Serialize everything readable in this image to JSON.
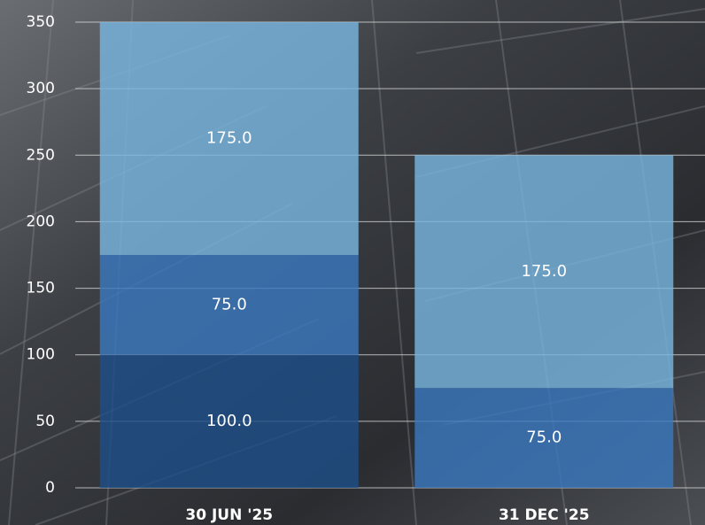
{
  "chart_data": {
    "type": "stacked-bar",
    "categories": [
      "30 JUN '25",
      "31 DEC '25"
    ],
    "series": [
      {
        "color": "#1d4e87",
        "values": [
          100,
          null
        ],
        "value_labels": [
          "100.0",
          null
        ]
      },
      {
        "color": "#3b78bd",
        "values": [
          75,
          75
        ],
        "value_labels": [
          "75.0",
          "75.0"
        ]
      },
      {
        "color": "#78b4de",
        "values": [
          175,
          175
        ],
        "value_labels": [
          "175.0",
          "175.0"
        ]
      }
    ],
    "ylim": [
      0,
      350
    ],
    "yticks": [
      0,
      50,
      100,
      150,
      200,
      250,
      300,
      350
    ],
    "grid": true
  }
}
